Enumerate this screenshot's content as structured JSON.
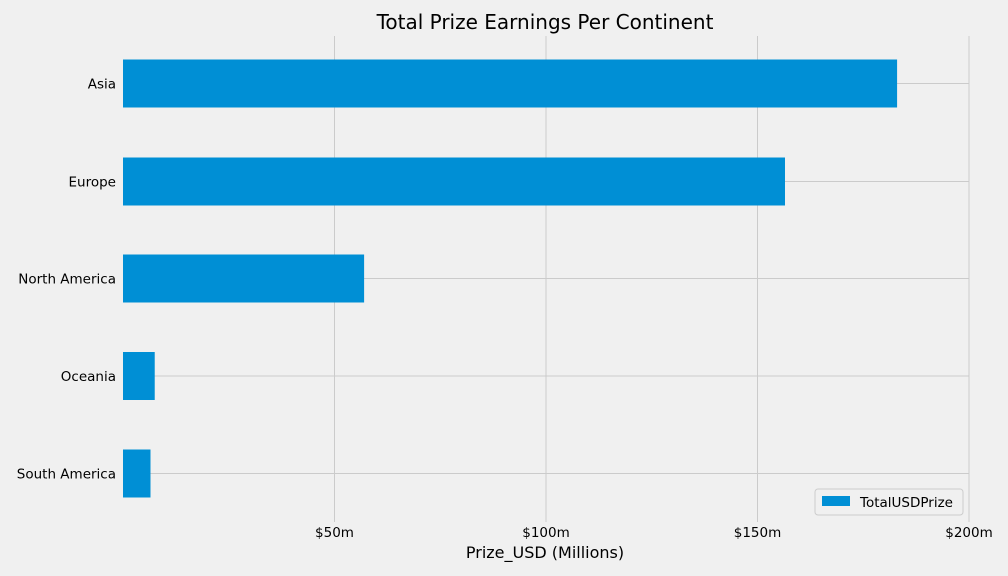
{
  "chart_data": {
    "type": "bar",
    "orientation": "horizontal",
    "title": "Total Prize Earnings Per Continent",
    "xlabel": "Prize_USD (Millions)",
    "ylabel": "",
    "categories": [
      "Asia",
      "Europe",
      "North America",
      "Oceania",
      "South America"
    ],
    "series": [
      {
        "name": "TotalUSDPrize",
        "values": [
          183,
          156.5,
          57,
          7.5,
          6.5
        ]
      }
    ],
    "xlim": [
      0,
      200
    ],
    "xticks": [
      {
        "value": 50,
        "label": "$50m"
      },
      {
        "value": 100,
        "label": "$100m"
      },
      {
        "value": 150,
        "label": "$150m"
      },
      {
        "value": 200,
        "label": "$200m"
      }
    ],
    "grid": true,
    "legend_position": "bottom-right",
    "colors": {
      "bar": "#008fd5",
      "background": "#f0f0f0",
      "grid": "#cbcbcb"
    }
  }
}
